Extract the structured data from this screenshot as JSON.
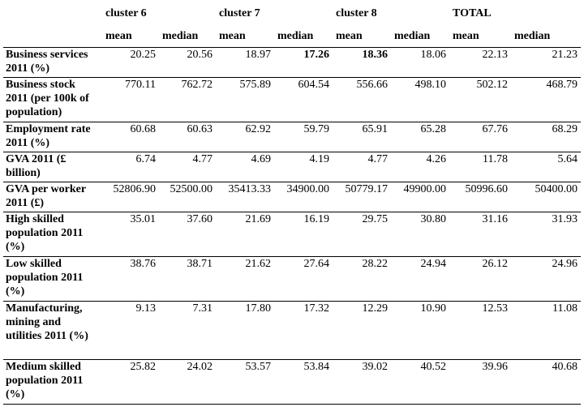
{
  "header": {
    "clusters": [
      "cluster 6",
      "cluster 7",
      "cluster 8",
      "TOTAL"
    ],
    "subheaders": [
      "mean",
      "median",
      "mean",
      "median",
      "mean",
      "median",
      "mean",
      "median"
    ]
  },
  "rows": [
    {
      "label": "Business services 2011 (%)",
      "values": [
        "20.25",
        "20.56",
        "18.97",
        "17.26",
        "18.36",
        "18.06",
        "22.13",
        "21.23"
      ]
    },
    {
      "label": "Business stock 2011 (per 100k of population)",
      "values": [
        "770.11",
        "762.72",
        "575.89",
        "604.54",
        "556.66",
        "498.10",
        "502.12",
        "468.79"
      ]
    },
    {
      "label": "Employment rate 2011 (%)",
      "values": [
        "60.68",
        "60.63",
        "62.92",
        "59.79",
        "65.91",
        "65.28",
        "67.76",
        "68.29"
      ]
    },
    {
      "label": "GVA 2011 (£ billion)",
      "values": [
        "6.74",
        "4.77",
        "4.69",
        "4.19",
        "4.77",
        "4.26",
        "11.78",
        "5.64"
      ]
    },
    {
      "label": "GVA per worker 2011 (£)",
      "values": [
        "52806.90",
        "52500.00",
        "35413.33",
        "34900.00",
        "50779.17",
        "49900.00",
        "50996.60",
        "50400.00"
      ]
    },
    {
      "label": "High skilled population 2011 (%)",
      "values": [
        "35.01",
        "37.60",
        "21.69",
        "16.19",
        "29.75",
        "30.80",
        "31.16",
        "31.93"
      ]
    },
    {
      "label": "Low skilled population 2011 (%)",
      "values": [
        "38.76",
        "38.71",
        "21.62",
        "27.64",
        "28.22",
        "24.94",
        "26.12",
        "24.96"
      ]
    },
    {
      "label": "Manufacturing, mining and utilities 2011 (%)",
      "values": [
        "9.13",
        "7.31",
        "17.80",
        "17.32",
        "12.29",
        "10.90",
        "12.53",
        "11.08"
      ]
    },
    {
      "label": "Medium skilled population 2011 (%)",
      "values": [
        "25.82",
        "24.02",
        "53.57",
        "53.84",
        "39.02",
        "40.52",
        "39.96",
        "40.68"
      ]
    }
  ]
}
